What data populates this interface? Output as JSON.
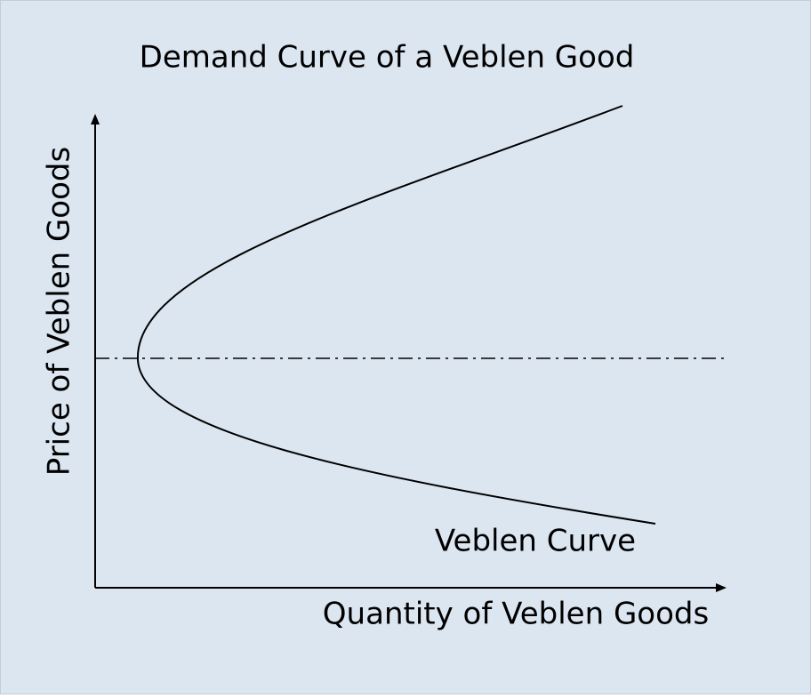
{
  "title": "Demand Curve of a Veblen Good",
  "y_axis_label": "Price of Veblen Goods",
  "x_axis_label": "Quantity of Veblen Goods",
  "curve_label": "Veblen Curve"
}
